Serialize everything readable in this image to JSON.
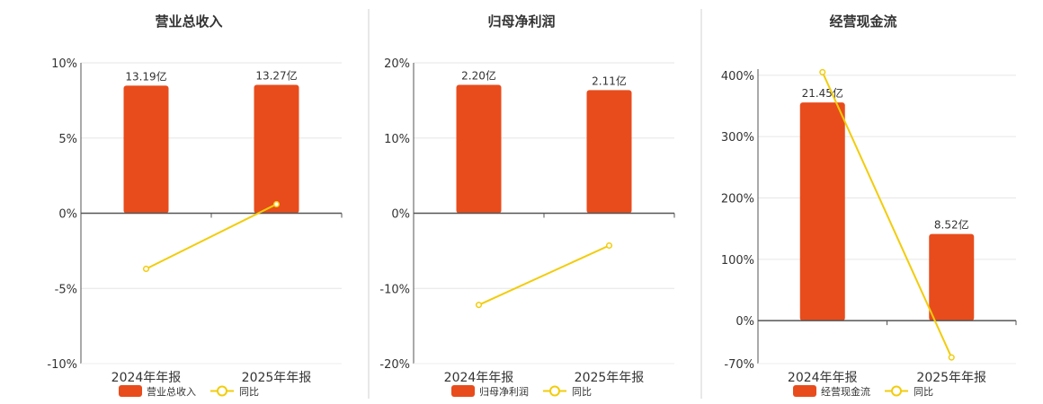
{
  "colors": {
    "bar": "#E84C1C",
    "line": "#F2CC0C",
    "axis": "#555555",
    "grid": "#E6E6E6",
    "divider": "#D0D0D0"
  },
  "chart_data": [
    {
      "type": "bar",
      "title": "营业总收入",
      "categories": [
        "2024年年报",
        "2025年年报"
      ],
      "bar_labels": [
        "13.19亿",
        "13.27亿"
      ],
      "values": [
        13.19,
        13.27
      ],
      "unit": "亿",
      "yoy": [
        -3.7,
        0.6
      ],
      "ylim": [
        -10,
        10
      ],
      "yticks": [
        10,
        5,
        0,
        -5,
        -10
      ],
      "ytick_labels": [
        "10%",
        "5%",
        "0%",
        "-5%",
        "-10%"
      ],
      "legend": [
        "营业总收入",
        "同比"
      ]
    },
    {
      "type": "bar",
      "title": "归母净利润",
      "categories": [
        "2024年年报",
        "2025年年报"
      ],
      "bar_labels": [
        "2.20亿",
        "2.11亿"
      ],
      "values": [
        2.2,
        2.11
      ],
      "unit": "亿",
      "yoy": [
        -12.2,
        -4.3
      ],
      "ylim": [
        -20,
        20
      ],
      "yticks": [
        20,
        10,
        0,
        -10,
        -20
      ],
      "ytick_labels": [
        "20%",
        "10%",
        "0%",
        "-10%",
        "-20%"
      ],
      "legend": [
        "归母净利润",
        "同比"
      ]
    },
    {
      "type": "bar",
      "title": "经营现金流",
      "categories": [
        "2024年年报",
        "2025年年报"
      ],
      "bar_labels": [
        "21.45亿",
        "8.52亿"
      ],
      "values": [
        21.45,
        8.52
      ],
      "unit": "亿",
      "yoy": [
        405,
        -60
      ],
      "ylim": [
        -70,
        410
      ],
      "yticks": [
        400,
        300,
        200,
        100,
        0,
        -70
      ],
      "ytick_labels": [
        "400%",
        "300%",
        "200%",
        "100%",
        "0%",
        "-70%"
      ],
      "legend": [
        "经营现金流",
        "同比"
      ]
    }
  ]
}
